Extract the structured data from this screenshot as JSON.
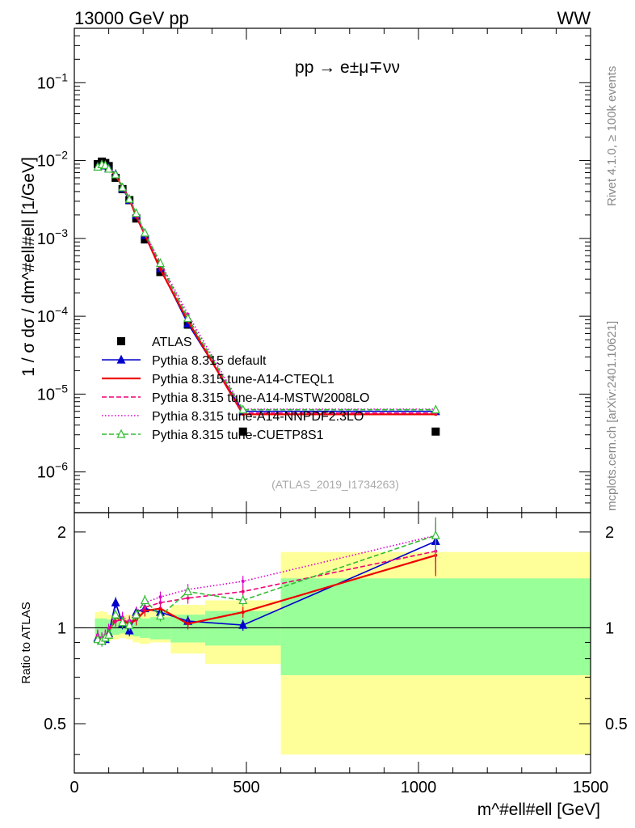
{
  "header": {
    "left": "13000 GeV pp",
    "right": "WW"
  },
  "side_labels": {
    "rivet": "Rivet 4.1.0, ≥ 100k events",
    "mcplots": "mcplots.cern.ch [arXiv:2401.10621]"
  },
  "chart_data": [
    {
      "type": "line",
      "role": "main",
      "title": "pp → e±μ∓νν",
      "analysis_id": "(ATLAS_2019_I1734263)",
      "ylabel": "1 / σ dσ / dm^#ell#ell [1/GeV]",
      "xlim": [
        0,
        1500
      ],
      "ylim": [
        3e-07,
        0.5
      ],
      "yscale": "log",
      "ytick_labels": [
        "10^-6",
        "10^-5",
        "10^-4",
        "10^-3",
        "10^-2",
        "10^-1"
      ],
      "x": [
        68,
        80,
        90,
        100,
        120,
        140,
        160,
        180,
        205,
        250,
        330,
        490,
        1050
      ],
      "series": [
        {
          "name": "ATLAS",
          "color": "#000000",
          "style": "marker-square",
          "values": [
            0.009,
            0.0097,
            0.0093,
            0.0085,
            0.006,
            0.0043,
            0.0031,
            0.0018,
            0.00097,
            0.00037,
            7.8e-05,
            3.3e-06,
            3.3e-06
          ]
        },
        {
          "name": "Pythia 8.315 default",
          "color": "#0000cc",
          "style": "solid-triangle",
          "values": [
            0.0083,
            0.0088,
            0.0086,
            0.008,
            0.0067,
            0.0044,
            0.0031,
            0.002,
            0.0011,
            0.00041,
            8e-05,
            6e-06,
            6e-06
          ]
        },
        {
          "name": "Pythia 8.315 tune-A14-CTEQL1",
          "color": "#ee0000",
          "style": "solid",
          "values": [
            0.0085,
            0.009,
            0.0088,
            0.0079,
            0.0064,
            0.0046,
            0.0032,
            0.0019,
            0.00112,
            0.0004,
            8.7e-05,
            5.5e-06,
            5.5e-06
          ]
        },
        {
          "name": "Pythia 8.315 tune-A14-MSTW2008LO",
          "color": "#ee0077",
          "style": "dashed",
          "values": [
            0.0085,
            0.009,
            0.0087,
            0.0081,
            0.0063,
            0.0046,
            0.0033,
            0.002,
            0.00113,
            0.00045,
            9.6e-05,
            5.7e-06,
            5.7e-06
          ]
        },
        {
          "name": "Pythia 8.315 tune-A14-NNPDF2.3LO",
          "color": "#dd00cc",
          "style": "dotted",
          "values": [
            0.0086,
            0.0091,
            0.0088,
            0.0082,
            0.0068,
            0.0047,
            0.0033,
            0.0021,
            0.00118,
            0.00049,
            0.000106,
            6.4e-06,
            6.4e-06
          ]
        },
        {
          "name": "Pythia 8.315 tune-CUETP8S1",
          "color": "#33bb33",
          "style": "dashed-open-triangle",
          "values": [
            0.0083,
            0.0089,
            0.0087,
            0.0078,
            0.0066,
            0.0045,
            0.0032,
            0.0021,
            0.00118,
            0.00048,
            9.4e-05,
            6.3e-06,
            6.3e-06
          ]
        }
      ]
    },
    {
      "type": "line",
      "role": "ratio",
      "ylabel": "Ratio to ATLAS",
      "xlabel": "m^#ell#ell [GeV]",
      "xlim": [
        0,
        1500
      ],
      "ylim": [
        0.35,
        2.3
      ],
      "yscale": "log",
      "xtick_labels": [
        "0",
        "500",
        "1000",
        "1500"
      ],
      "ytick_labels": [
        "0.5",
        "1",
        "2"
      ],
      "x": [
        68,
        80,
        90,
        100,
        120,
        140,
        160,
        180,
        205,
        250,
        330,
        490,
        1050
      ],
      "band_edges": [
        60,
        75,
        85,
        95,
        110,
        130,
        150,
        170,
        190,
        220,
        280,
        380,
        600,
        1500
      ],
      "band_inner": [
        [
          0.93,
          1.07
        ],
        [
          0.92,
          1.07
        ],
        [
          0.93,
          1.07
        ],
        [
          0.94,
          1.06
        ],
        [
          0.95,
          1.05
        ],
        [
          0.96,
          1.05
        ],
        [
          0.95,
          1.05
        ],
        [
          0.94,
          1.06
        ],
        [
          0.93,
          1.07
        ],
        [
          0.92,
          1.08
        ],
        [
          0.9,
          1.1
        ],
        [
          0.88,
          1.13
        ],
        [
          0.71,
          1.43
        ]
      ],
      "band_outer": [
        [
          0.9,
          1.12
        ],
        [
          0.9,
          1.13
        ],
        [
          0.91,
          1.12
        ],
        [
          0.91,
          1.1
        ],
        [
          0.92,
          1.09
        ],
        [
          0.93,
          1.09
        ],
        [
          0.92,
          1.1
        ],
        [
          0.9,
          1.11
        ],
        [
          0.89,
          1.12
        ],
        [
          0.9,
          1.14
        ],
        [
          0.83,
          1.18
        ],
        [
          0.77,
          1.22
        ],
        [
          0.4,
          1.73
        ]
      ],
      "series": [
        {
          "name": "Pythia 8.315 default",
          "color": "#0000cc",
          "style": "solid-triangle",
          "values": [
            0.93,
            0.91,
            0.92,
            0.96,
            1.2,
            1.03,
            0.98,
            1.12,
            1.15,
            1.12,
            1.05,
            1.02,
            1.87
          ]
        },
        {
          "name": "Pythia 8.315 tune-A14-CTEQL1",
          "color": "#ee0000",
          "style": "solid",
          "values": [
            0.94,
            0.92,
            0.94,
            0.97,
            1.08,
            1.05,
            1.03,
            1.06,
            1.13,
            1.15,
            1.03,
            1.12,
            1.69
          ]
        },
        {
          "name": "Pythia 8.315 tune-A14-MSTW2008LO",
          "color": "#ee0077",
          "style": "dashed",
          "values": [
            0.94,
            0.92,
            0.94,
            0.98,
            1.05,
            1.06,
            1.04,
            1.08,
            1.16,
            1.2,
            1.24,
            1.3,
            1.74
          ]
        },
        {
          "name": "Pythia 8.315 tune-A14-NNPDF2.3LO",
          "color": "#dd00cc",
          "style": "dotted",
          "values": [
            0.95,
            0.93,
            0.95,
            0.99,
            1.1,
            1.08,
            1.05,
            1.12,
            1.2,
            1.25,
            1.32,
            1.4,
            1.95
          ]
        },
        {
          "name": "Pythia 8.315 tune-CUETP8S1",
          "color": "#33bb33",
          "style": "dashed-open-triangle",
          "values": [
            0.92,
            0.91,
            0.93,
            0.95,
            1.1,
            1.04,
            1.02,
            1.1,
            1.22,
            1.09,
            1.3,
            1.22,
            1.95
          ]
        }
      ]
    }
  ]
}
